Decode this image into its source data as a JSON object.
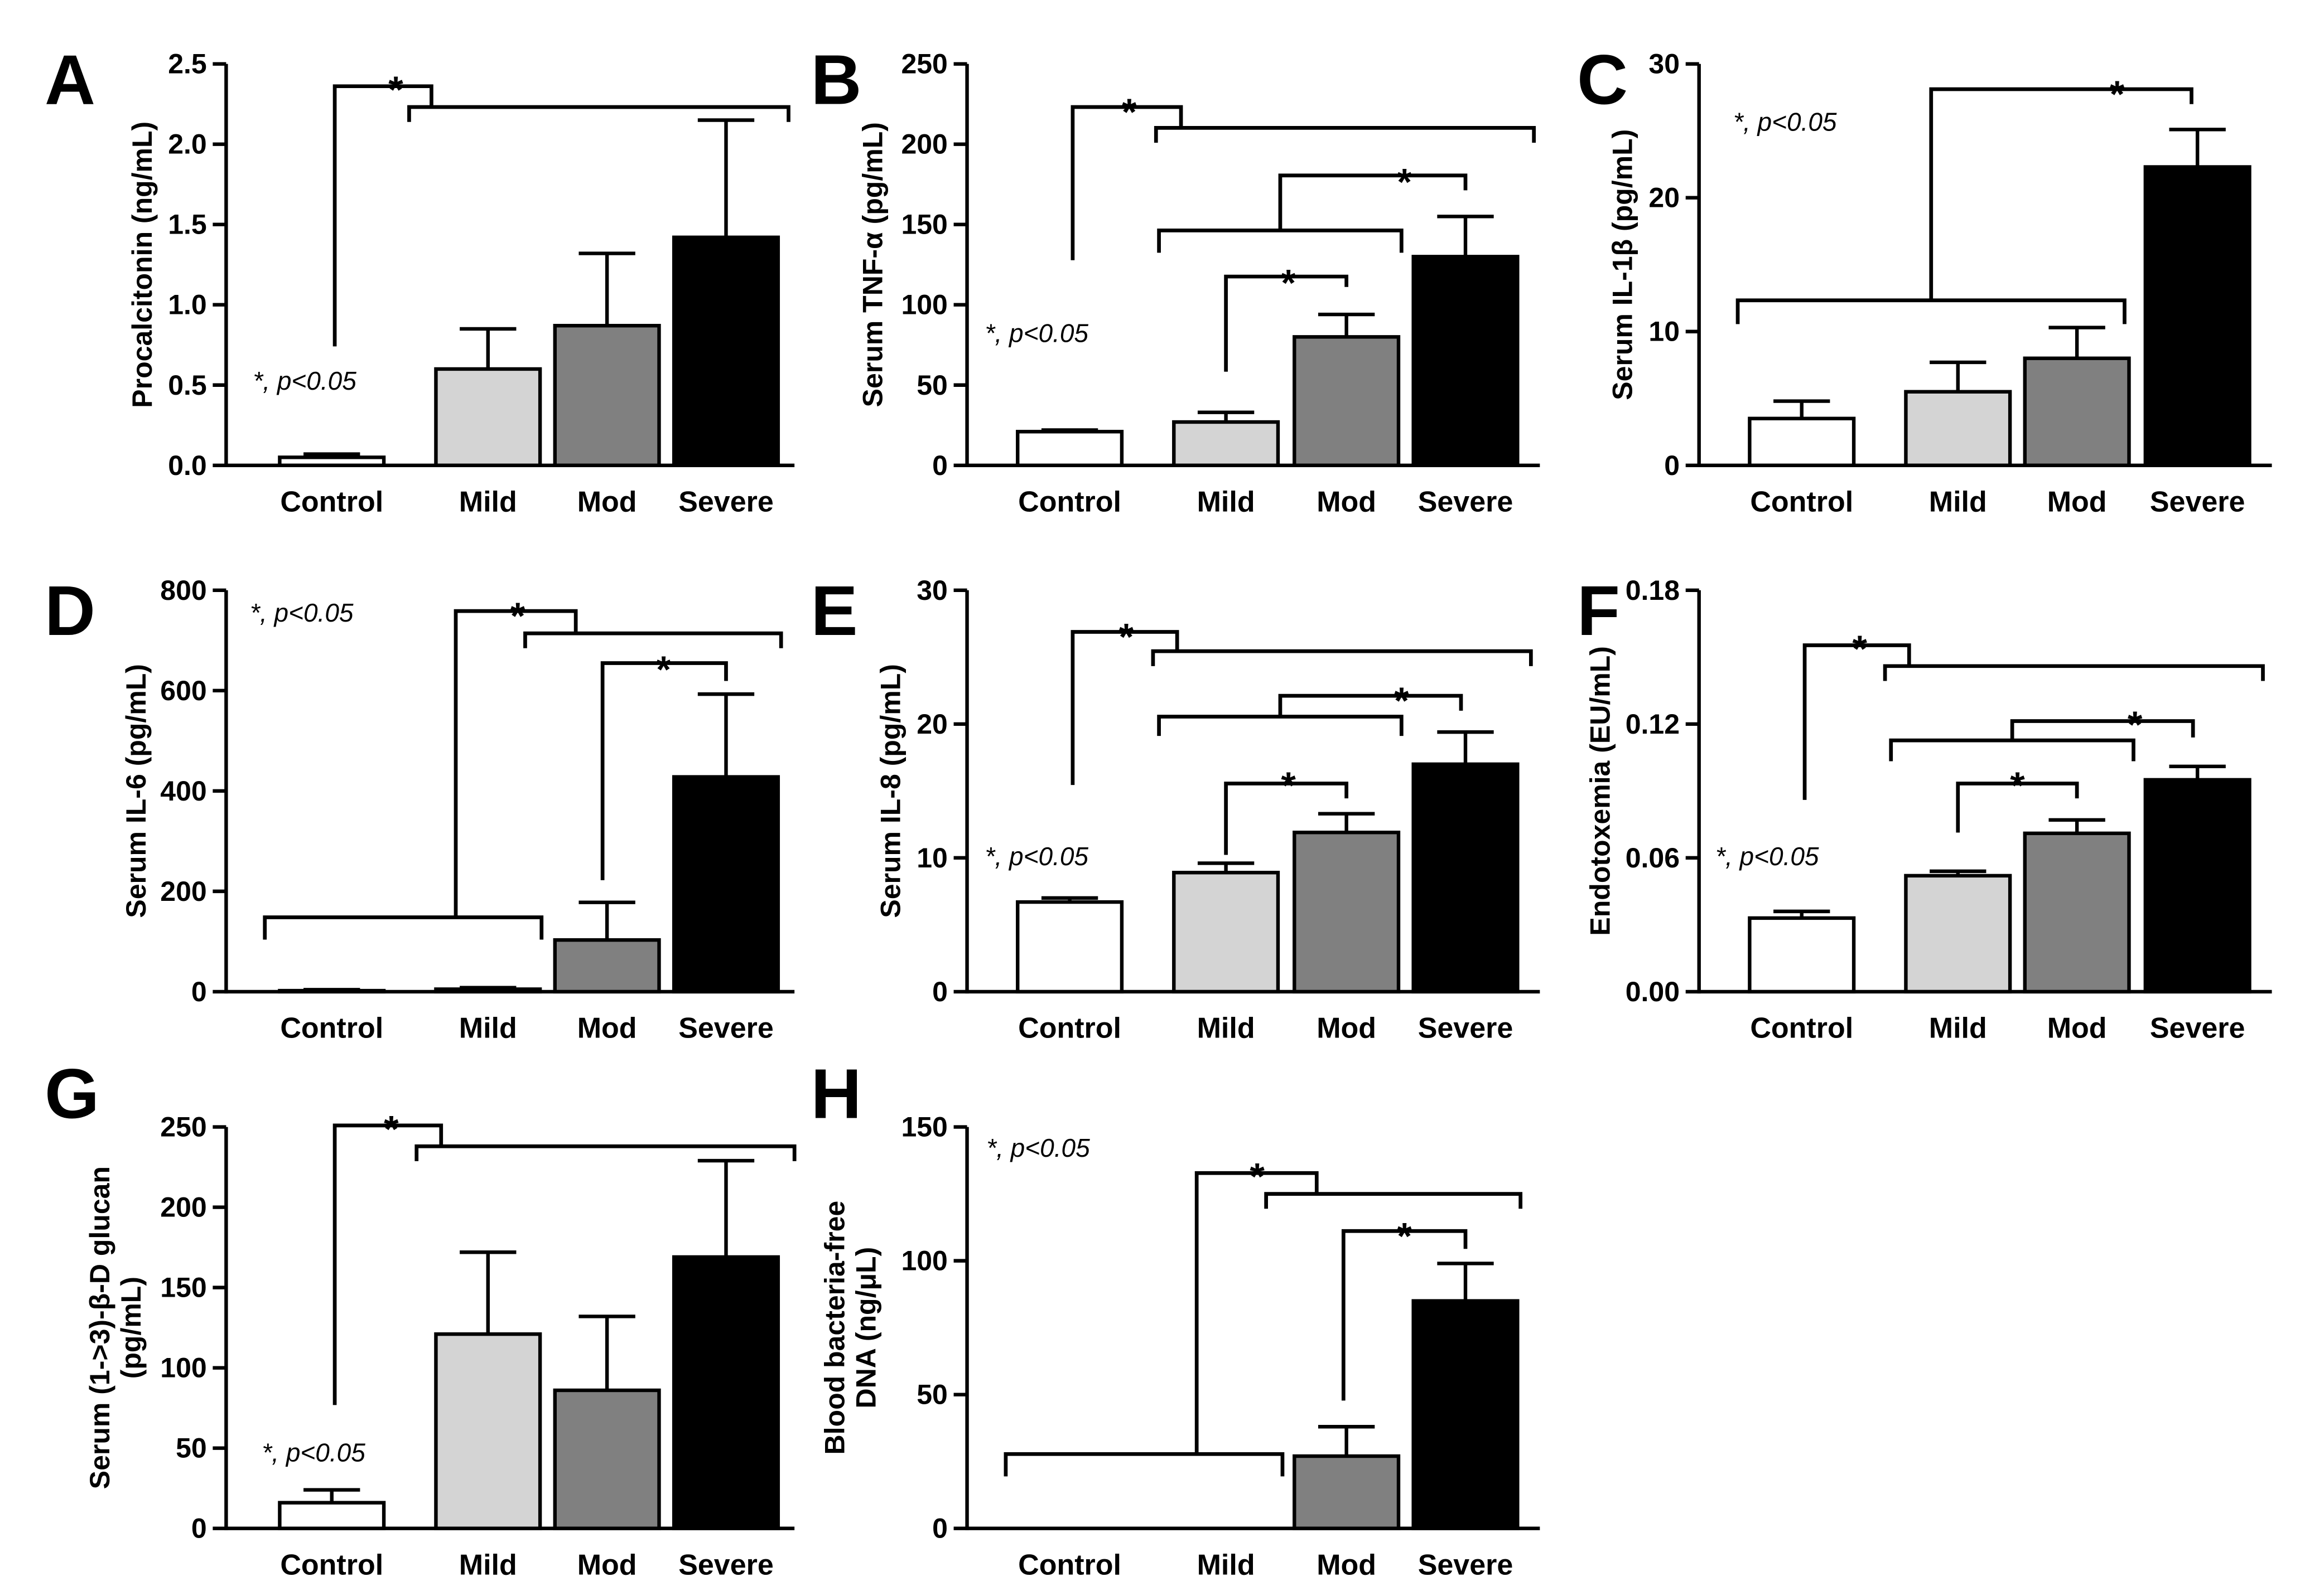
{
  "figure": {
    "categories": [
      "Control",
      "Mild",
      "Mod",
      "Severe"
    ],
    "colors": {
      "Control": "#ffffff",
      "Mild": "#d4d4d4",
      "Mod": "#808080",
      "Severe": "#000000"
    },
    "significance_marker": "*"
  },
  "chart_data": [
    {
      "panel": "A",
      "type": "bar",
      "categories": [
        "Control",
        "Mild",
        "Mod",
        "Severe"
      ],
      "values": [
        0.05,
        0.6,
        0.87,
        1.42
      ],
      "errors": [
        0.02,
        0.25,
        0.45,
        0.73
      ],
      "ylabel": "Procalcitonin (ng/mL)",
      "ylim": [
        0,
        2.5
      ],
      "yticks": [
        "0.0",
        "0.5",
        "1.0",
        "1.5",
        "2.0",
        "2.5"
      ],
      "note": "*, p<0.05",
      "significance": [
        {
          "label": "*",
          "from": "Control",
          "to": [
            "Mild",
            "Mod",
            "Severe"
          ]
        }
      ]
    },
    {
      "panel": "B",
      "type": "bar",
      "categories": [
        "Control",
        "Mild",
        "Mod",
        "Severe"
      ],
      "values": [
        21,
        27,
        80,
        130
      ],
      "errors": [
        1,
        6,
        14,
        25
      ],
      "ylabel": "Serum TNF-α (pg/mL)",
      "ylim": [
        0,
        250
      ],
      "yticks": [
        "0",
        "50",
        "100",
        "150",
        "200",
        "250"
      ],
      "note": "*, p<0.05",
      "significance": [
        {
          "label": "*",
          "from": "Control",
          "to": [
            "Mild",
            "Mod",
            "Severe"
          ]
        },
        {
          "label": "*",
          "from": "Mild",
          "to": [
            "Mod"
          ]
        },
        {
          "label": "*",
          "from": [
            "Mild",
            "Mod"
          ],
          "to": [
            "Severe"
          ]
        }
      ]
    },
    {
      "panel": "C",
      "type": "bar",
      "categories": [
        "Control",
        "Mild",
        "Mod",
        "Severe"
      ],
      "values": [
        3.5,
        5.5,
        8.0,
        22.3
      ],
      "errors": [
        1.3,
        2.2,
        2.3,
        2.8
      ],
      "ylabel": "Serum IL-1β (pg/mL)",
      "ylim": [
        0,
        30
      ],
      "yticks": [
        "0",
        "10",
        "20",
        "30"
      ],
      "note": "*, p<0.05",
      "significance": [
        {
          "label": "*",
          "from": [
            "Control",
            "Mild",
            "Mod"
          ],
          "to": [
            "Severe"
          ]
        }
      ]
    },
    {
      "panel": "D",
      "type": "bar",
      "categories": [
        "Control",
        "Mild",
        "Mod",
        "Severe"
      ],
      "values": [
        2,
        5,
        103,
        428
      ],
      "errors": [
        2,
        3,
        75,
        165
      ],
      "ylabel": "Serum IL-6 (pg/mL)",
      "ylim": [
        0,
        800
      ],
      "yticks": [
        "0",
        "200",
        "400",
        "600",
        "800"
      ],
      "note": "*, p<0.05",
      "significance": [
        {
          "label": "*",
          "from": [
            "Control",
            "Mild"
          ],
          "to": [
            "Mod",
            "Severe"
          ]
        },
        {
          "label": "*",
          "from": "Mod",
          "to": [
            "Severe"
          ]
        }
      ]
    },
    {
      "panel": "E",
      "type": "bar",
      "categories": [
        "Control",
        "Mild",
        "Mod",
        "Severe"
      ],
      "values": [
        6.7,
        8.9,
        11.9,
        17.0
      ],
      "errors": [
        0.3,
        0.7,
        1.4,
        2.4
      ],
      "ylabel": "Serum IL-8 (pg/mL)",
      "ylim": [
        0,
        30
      ],
      "yticks": [
        "0",
        "10",
        "20",
        "30"
      ],
      "note": "*, p<0.05",
      "significance": [
        {
          "label": "*",
          "from": "Control",
          "to": [
            "Mild",
            "Mod",
            "Severe"
          ]
        },
        {
          "label": "*",
          "from": "Mild",
          "to": [
            "Mod"
          ]
        },
        {
          "label": "*",
          "from": [
            "Mild",
            "Mod"
          ],
          "to": [
            "Severe"
          ]
        }
      ]
    },
    {
      "panel": "F",
      "type": "bar",
      "categories": [
        "Control",
        "Mild",
        "Mod",
        "Severe"
      ],
      "values": [
        0.033,
        0.052,
        0.071,
        0.095
      ],
      "errors": [
        0.003,
        0.002,
        0.006,
        0.006
      ],
      "ylabel": "Endotoxemia (EU/mL)",
      "ylim": [
        0,
        0.18
      ],
      "yticks": [
        "0.00",
        "0.06",
        "0.12",
        "0.18"
      ],
      "note": "*, p<0.05",
      "significance": [
        {
          "label": "*",
          "from": "Control",
          "to": [
            "Mild",
            "Mod",
            "Severe"
          ]
        },
        {
          "label": "*",
          "from": "Mild",
          "to": [
            "Mod"
          ]
        },
        {
          "label": "*",
          "from": [
            "Mild",
            "Mod"
          ],
          "to": [
            "Severe"
          ]
        }
      ]
    },
    {
      "panel": "G",
      "type": "bar",
      "categories": [
        "Control",
        "Mild",
        "Mod",
        "Severe"
      ],
      "values": [
        16,
        121,
        86,
        169
      ],
      "errors": [
        8,
        51,
        46,
        60
      ],
      "ylabel": [
        "Serum (1->3)-β-D glucan",
        "(pg/mL)"
      ],
      "ylim": [
        0,
        250
      ],
      "yticks": [
        "0",
        "50",
        "100",
        "150",
        "200",
        "250"
      ],
      "note": "*, p<0.05",
      "significance": [
        {
          "label": "*",
          "from": "Control",
          "to": [
            "Mild",
            "Mod",
            "Severe"
          ]
        }
      ]
    },
    {
      "panel": "H",
      "type": "bar",
      "categories": [
        "Control",
        "Mild",
        "Mod",
        "Severe"
      ],
      "values": [
        0,
        0,
        27,
        85
      ],
      "errors": [
        0,
        0,
        11,
        14
      ],
      "ylabel": [
        "Blood bacteria-free",
        "DNA (ng/μL)"
      ],
      "ylim": [
        0,
        150
      ],
      "yticks": [
        "0",
        "50",
        "100",
        "150"
      ],
      "note": "*, p<0.05",
      "significance": [
        {
          "label": "*",
          "from": [
            "Control",
            "Mild"
          ],
          "to": [
            "Mod",
            "Severe"
          ]
        },
        {
          "label": "*",
          "from": "Mod",
          "to": [
            "Severe"
          ]
        }
      ]
    }
  ]
}
